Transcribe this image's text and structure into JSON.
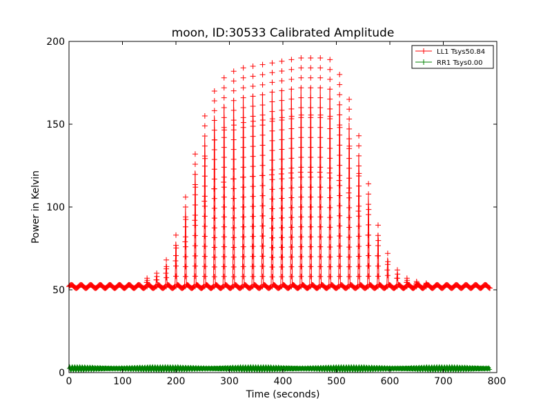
{
  "chart_data": {
    "type": "line",
    "title": "moon, ID:30533 Calibrated Amplitude",
    "xlabel": "Time (seconds)",
    "ylabel": "Power in Kelvin",
    "xlim": [
      0,
      800
    ],
    "ylim": [
      0,
      200
    ],
    "xticks": [
      "0",
      "100",
      "200",
      "300",
      "400",
      "500",
      "600",
      "700",
      "800"
    ],
    "yticks": [
      "0",
      "50",
      "100",
      "150",
      "200"
    ],
    "grid": false,
    "legend_position": "top-right",
    "scan_period_seconds": 18,
    "series": [
      {
        "name": "LL1 Tsys50.84",
        "color": "#ff0000",
        "marker": "+",
        "baseline": 52,
        "peak_times": [
          146,
          164,
          182,
          200,
          218,
          236,
          254,
          272,
          290,
          308,
          326,
          344,
          362,
          380,
          398,
          416,
          434,
          452,
          470,
          488,
          506,
          524,
          542,
          560,
          578,
          596,
          614,
          632,
          650,
          668
        ],
        "peak_values": [
          57,
          60,
          68,
          83,
          106,
          132,
          155,
          170,
          178,
          182,
          184,
          185,
          186,
          187,
          188,
          189,
          190,
          190,
          190,
          189,
          180,
          165,
          143,
          114,
          89,
          72,
          62,
          57,
          55,
          54
        ],
        "ylim_note": "",
        "ripple_amplitude": 1
      },
      {
        "name": "RR1 Tsys0.00",
        "color": "#008000",
        "marker": "+",
        "baseline": 2.5
      }
    ]
  }
}
